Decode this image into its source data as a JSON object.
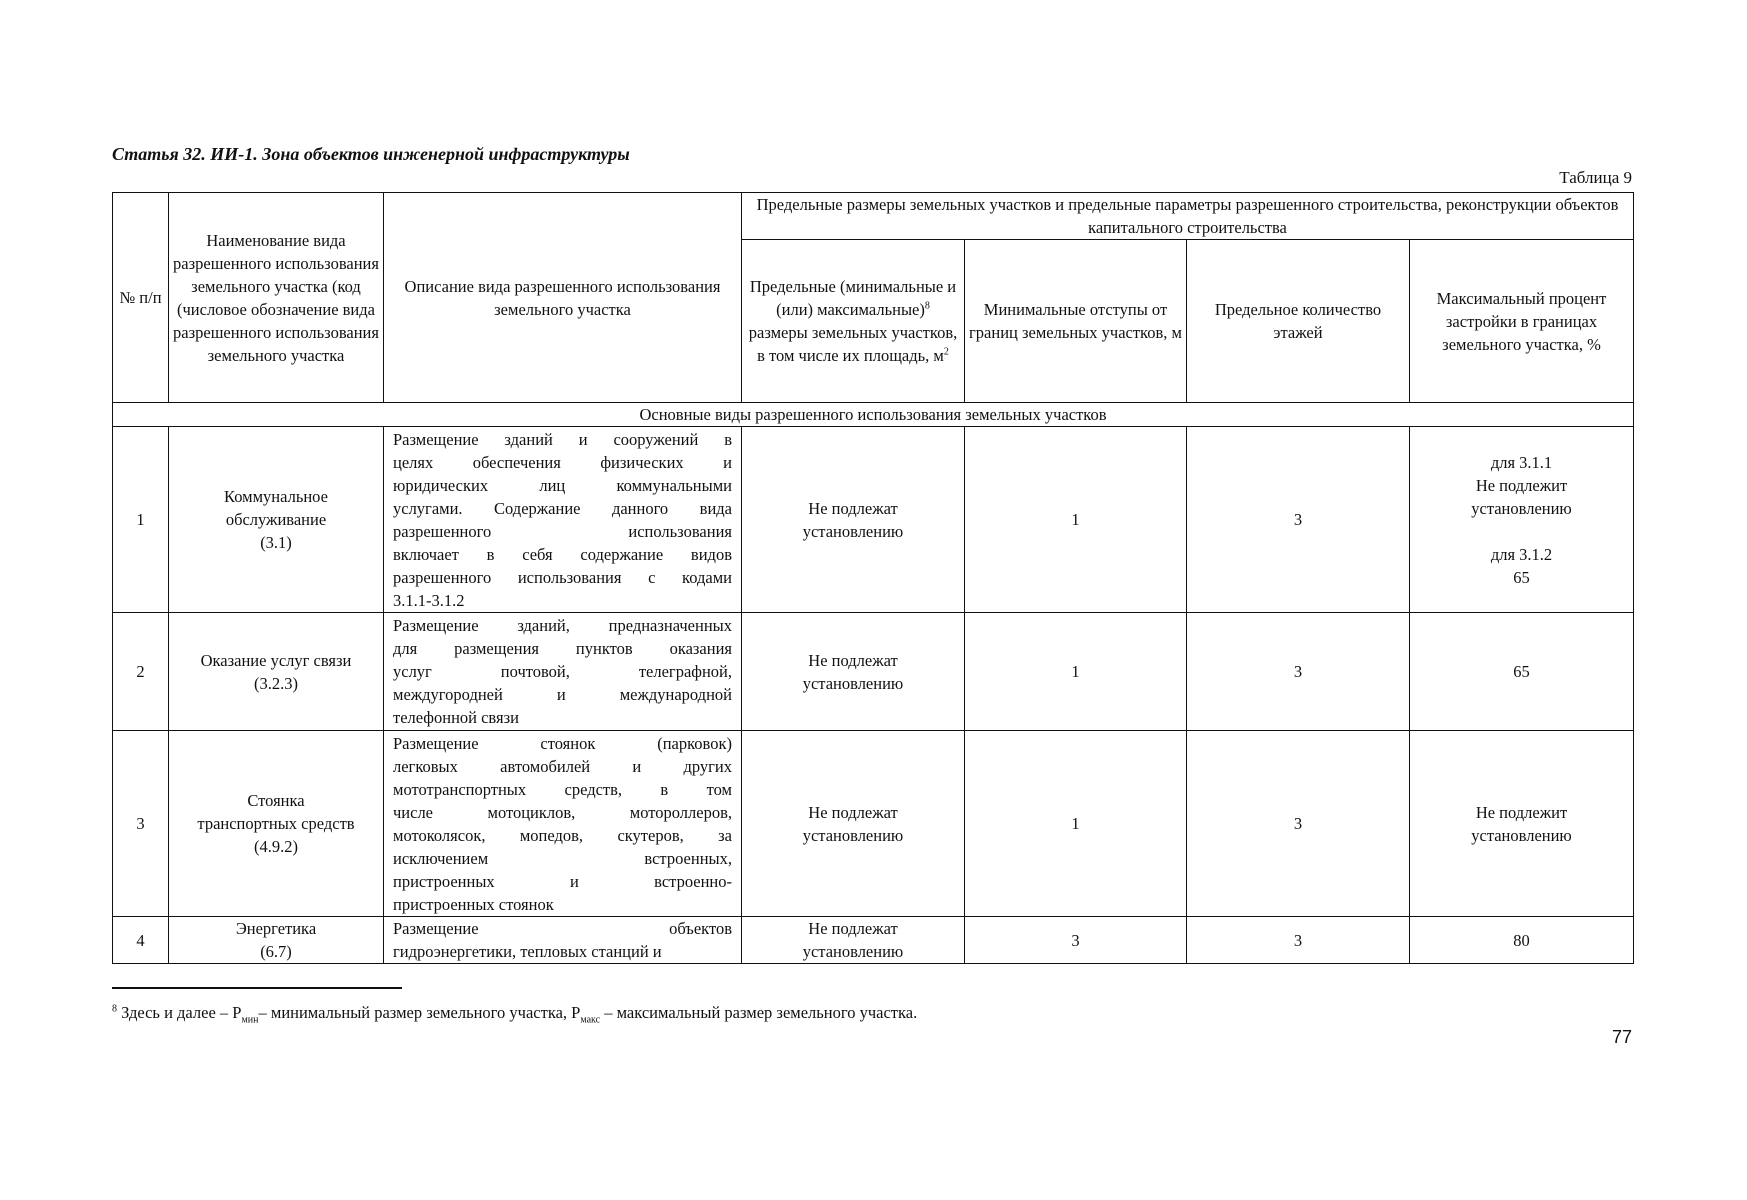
{
  "title": "Статья 32. ИИ-1. Зона объектов инженерной инфраструктуры",
  "table_label": "Таблица 9",
  "headers": {
    "num": "№ п/п",
    "name": "Наименование вида разрешенного использования земельного участка (код (числовое обозначение вида разрешенного использования земельного участка",
    "desc": "Описание вида разрешенного использования земельного участка",
    "group": "Предельные размеры земельных участков и предельные параметры разрешенного строительства, реконструкции объектов капитального строительства",
    "size": "Предельные (минимальные и (или) максимальные)",
    "size_sup": "8",
    "size_rest": "размеры земельных участков, в том числе их площадь, м",
    "size_unit_sup": "2",
    "setback": "Минимальные отступы от границ земельных участков, м",
    "floors": "Предельное количество этажей",
    "coverage": "Максимальный процент застройки в границах земельного участка, %"
  },
  "section": "Основные виды разрешенного использования земельных участков",
  "rows": [
    {
      "num": "1",
      "name": [
        "Коммунальное",
        "обслуживание",
        "(3.1)"
      ],
      "desc": [
        "Размещение зданий и сооружений в",
        "целях обеспечения физических и",
        "юридических лиц коммунальными",
        "услугами. Содержание данного вида",
        "разрешенного использования",
        "включает в себя содержание видов",
        "разрешенного использования с кодами",
        "3.1.1-3.1.2"
      ],
      "size": "Не подлежат установлению",
      "setback": "1",
      "floors": "3",
      "coverage": [
        "для 3.1.1",
        "Не подлежит",
        "установлению",
        "",
        "для 3.1.2",
        "65"
      ]
    },
    {
      "num": "2",
      "name": [
        "Оказание услуг связи",
        "(3.2.3)"
      ],
      "desc": [
        "Размещение зданий, предназначенных",
        "для размещения пунктов оказания",
        "услуг почтовой, телеграфной,",
        "междугородней и международной",
        "телефонной связи"
      ],
      "size": "Не подлежат установлению",
      "setback": "1",
      "floors": "3",
      "coverage": [
        "65"
      ]
    },
    {
      "num": "3",
      "name": [
        "Стоянка",
        "транспортных средств",
        "(4.9.2)"
      ],
      "desc": [
        "Размещение стоянок (парковок)",
        "легковых автомобилей и других",
        "мототранспортных средств, в том",
        "числе мотоциклов, мотороллеров,",
        "мотоколясок, мопедов, скутеров, за",
        "исключением встроенных,",
        "пристроенных и встроенно-",
        "пристроенных стоянок"
      ],
      "size": "Не подлежат установлению",
      "setback": "1",
      "floors": "3",
      "coverage": [
        "Не подлежит",
        "установлению"
      ]
    },
    {
      "num": "4",
      "name": [
        "Энергетика",
        "(6.7)"
      ],
      "desc": [
        "Размещение объектов",
        "гидроэнергетики, тепловых станций и"
      ],
      "size": "Не подлежат установлению",
      "setback": "3",
      "floors": "3",
      "coverage": [
        "80"
      ]
    }
  ],
  "footnote": {
    "marker": "8",
    "text_1": " Здесь и далее – P",
    "sub_1": "мин",
    "text_2": "– минимальный размер земельного участка, P",
    "sub_2": "макс",
    "text_3": " – максимальный размер земельного участка."
  },
  "page_number": "77"
}
